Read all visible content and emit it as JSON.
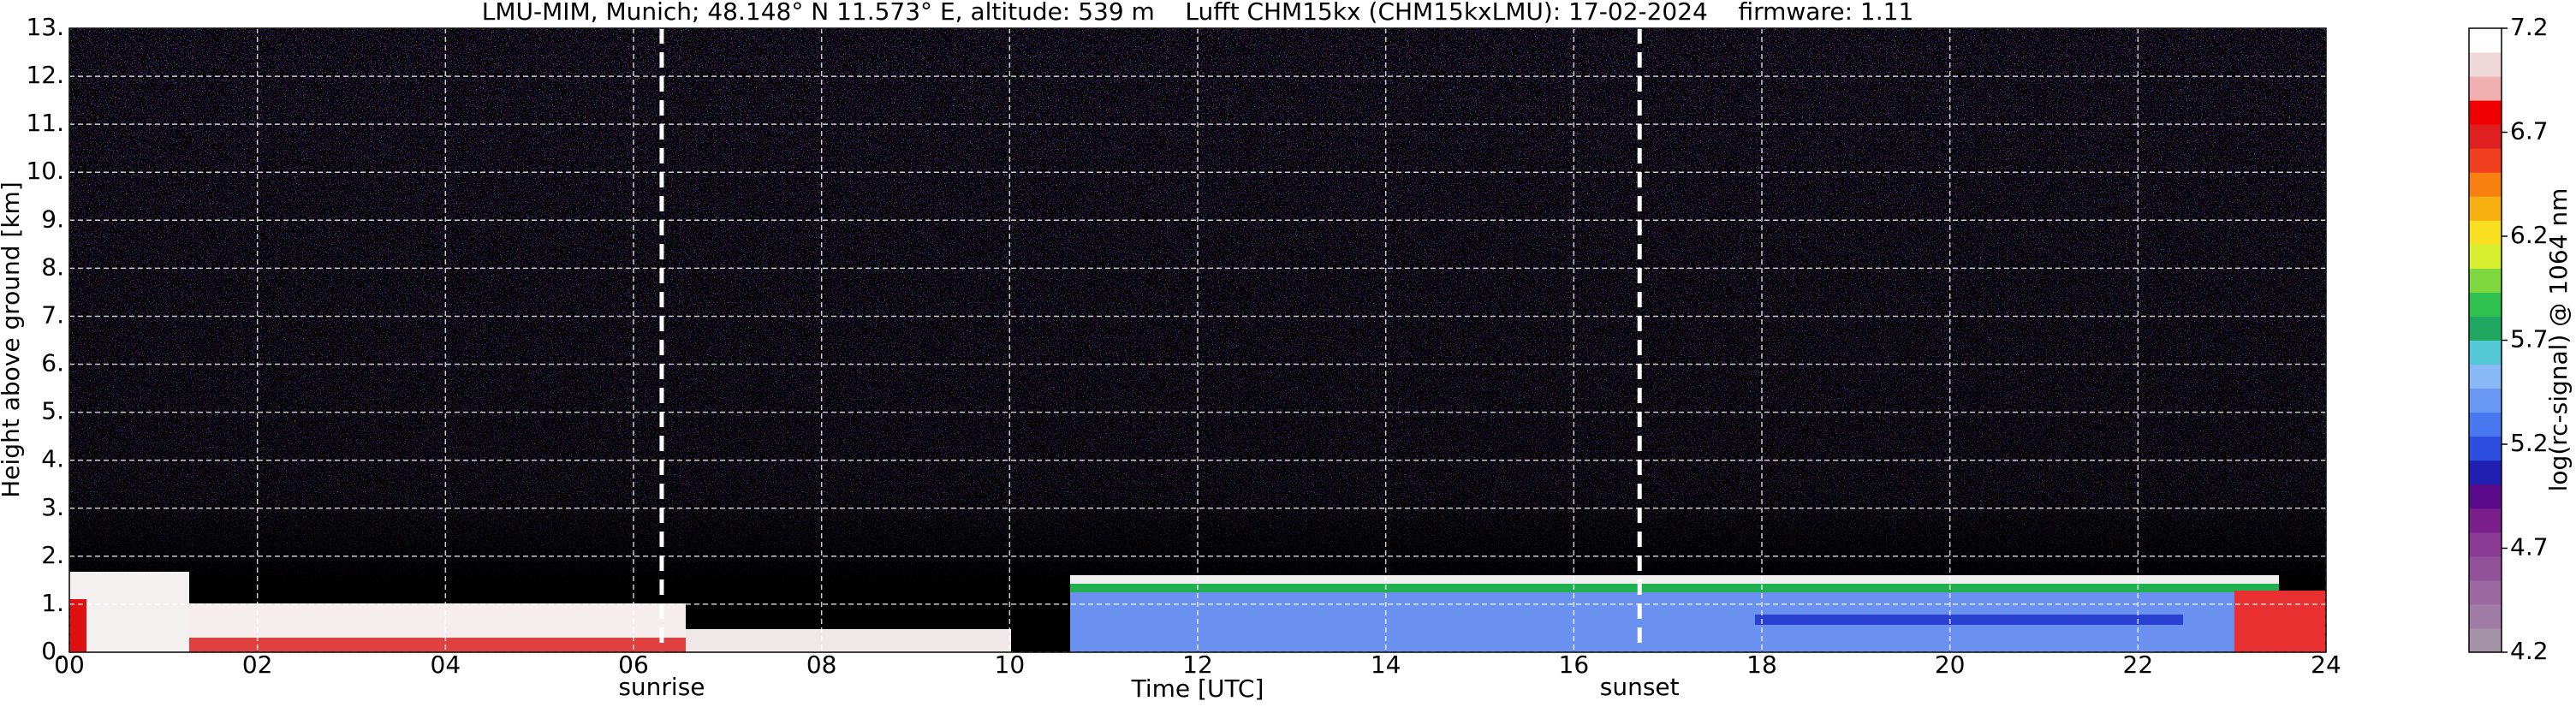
{
  "chart_data": {
    "type": "heatmap",
    "title": "LMU-MIM, Munich; 48.148° N 11.573° E, altitude: 539 m    Lufft CHM15kx (CHM15kxLMU): 17-02-2024    firmware: 1.11",
    "xlabel": "Time [UTC]",
    "ylabel": "Height above ground [km]",
    "xlim": [
      0,
      24
    ],
    "xticks": [
      {
        "value": 0,
        "label": "00"
      },
      {
        "value": 2,
        "label": "02"
      },
      {
        "value": 4,
        "label": "04"
      },
      {
        "value": 6,
        "label": "06"
      },
      {
        "value": 8,
        "label": "08"
      },
      {
        "value": 10,
        "label": "10"
      },
      {
        "value": 12,
        "label": "12"
      },
      {
        "value": 14,
        "label": "14"
      },
      {
        "value": 16,
        "label": "16"
      },
      {
        "value": 18,
        "label": "18"
      },
      {
        "value": 20,
        "label": "20"
      },
      {
        "value": 22,
        "label": "22"
      },
      {
        "value": 24,
        "label": "24"
      }
    ],
    "ylim": [
      0,
      13
    ],
    "yticks": [
      {
        "value": 0,
        "label": "0."
      },
      {
        "value": 1,
        "label": "1."
      },
      {
        "value": 2,
        "label": "2."
      },
      {
        "value": 3,
        "label": "3."
      },
      {
        "value": 4,
        "label": "4."
      },
      {
        "value": 5,
        "label": "5."
      },
      {
        "value": 6,
        "label": "6."
      },
      {
        "value": 7,
        "label": "7."
      },
      {
        "value": 8,
        "label": "8."
      },
      {
        "value": 9,
        "label": "9."
      },
      {
        "value": 10,
        "label": "10."
      },
      {
        "value": 11,
        "label": "11."
      },
      {
        "value": 12,
        "label": "12."
      },
      {
        "value": 13,
        "label": "13."
      }
    ],
    "grid": true,
    "annotations": [
      {
        "text": "sunrise",
        "x": 6.3
      },
      {
        "text": "sunset",
        "x": 16.7
      }
    ],
    "colorbar": {
      "label": "log(rc-signal) @ 1064 nm",
      "lim": [
        4.2,
        7.2
      ],
      "ticks": [
        4.2,
        4.7,
        5.2,
        5.7,
        6.2,
        6.7,
        7.2
      ],
      "colors": [
        "#a593a8",
        "#a07ba5",
        "#9c6aa0",
        "#93519a",
        "#8a3c94",
        "#7a1f8c",
        "#5a0a8a",
        "#2020b0",
        "#2e4ee0",
        "#4a78f0",
        "#6a98f5",
        "#88b8f5",
        "#55c8d8",
        "#20a860",
        "#30c050",
        "#80d840",
        "#d8f030",
        "#f8e020",
        "#f8b010",
        "#f88010",
        "#f04020",
        "#e02020",
        "#f00000",
        "#f0b0b0",
        "#f0d8d8",
        "#ffffff"
      ]
    }
  }
}
